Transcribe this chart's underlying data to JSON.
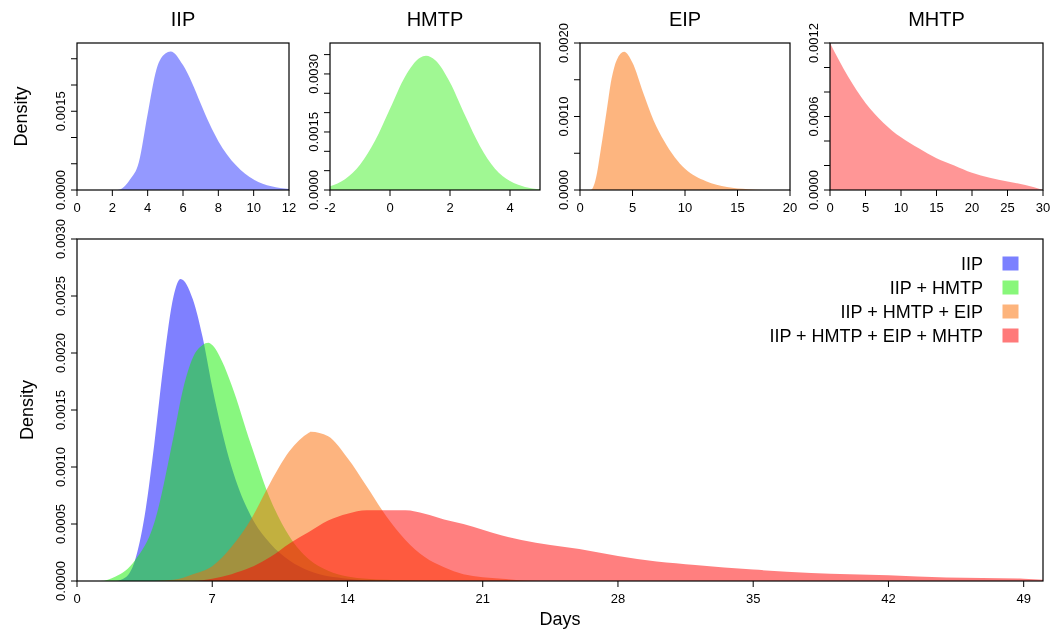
{
  "chart_data": [
    {
      "type": "area",
      "title": "IIP",
      "ylabel": "Density",
      "color": "#9499ff",
      "xlim": [
        0,
        12
      ],
      "xticks": [
        0,
        2,
        4,
        6,
        8,
        10,
        12
      ],
      "ylim": [
        0,
        0.0028
      ],
      "yticks": [
        {
          "value": 0,
          "label": "0.0000"
        },
        {
          "value": 0.0005,
          "label": null
        },
        {
          "value": 0.001,
          "label": null
        },
        {
          "value": 0.0015,
          "label": "0.0015"
        },
        {
          "value": 0.002,
          "label": null
        },
        {
          "value": 0.0025,
          "label": null
        }
      ],
      "x": [
        0,
        2.3,
        3,
        3.5,
        4,
        4.5,
        5,
        5.3,
        6,
        6.5,
        7,
        7.5,
        8,
        9,
        10,
        11,
        12
      ],
      "values": [
        0,
        0,
        0.0002,
        0.00053,
        0.00145,
        0.0023,
        0.0026,
        0.00264,
        0.00238,
        0.00205,
        0.00165,
        0.00126,
        0.00093,
        0.00047,
        0.0002,
        7e-05,
        2e-05
      ]
    },
    {
      "type": "area",
      "title": "HMTP",
      "color": "#a0f893",
      "xlim": [
        -2,
        5
      ],
      "xticks": [
        -2,
        0,
        2,
        4
      ],
      "ylim": [
        0,
        0.0038
      ],
      "yticks": [
        {
          "value": 0,
          "label": "0.0000"
        },
        {
          "value": 0.0005,
          "label": null
        },
        {
          "value": 0.001,
          "label": null
        },
        {
          "value": 0.0015,
          "label": "0.0015"
        },
        {
          "value": 0.002,
          "label": null
        },
        {
          "value": 0.0025,
          "label": null
        },
        {
          "value": 0.003,
          "label": "0.0030"
        },
        {
          "value": 0.0035,
          "label": null
        }
      ],
      "x": [
        -2,
        -1.5,
        -1,
        -0.5,
        0,
        0.5,
        1,
        1.2,
        1.5,
        2,
        2.5,
        3,
        3.5,
        4,
        4.5,
        5
      ],
      "values": [
        0.0001,
        0.00028,
        0.00065,
        0.00127,
        0.0021,
        0.00293,
        0.00342,
        0.00347,
        0.00336,
        0.00278,
        0.00193,
        0.00113,
        0.00055,
        0.00023,
        8e-05,
        2e-05
      ]
    },
    {
      "type": "area",
      "title": "EIP",
      "color": "#fdb57d",
      "xlim": [
        0,
        20
      ],
      "xticks": [
        0,
        5,
        10,
        15,
        20
      ],
      "ylim": [
        0,
        0.002
      ],
      "yticks": [
        {
          "value": 0,
          "label": "0.0000"
        },
        {
          "value": 0.0005,
          "label": null
        },
        {
          "value": 0.001,
          "label": "0.0010"
        },
        {
          "value": 0.0015,
          "label": null
        },
        {
          "value": 0.002,
          "label": "0.0020"
        }
      ],
      "x": [
        0,
        1,
        1.5,
        2,
        2.5,
        3,
        3.5,
        4.2,
        5,
        6,
        7,
        8,
        9,
        10,
        12,
        14,
        16,
        18,
        20
      ],
      "values": [
        0,
        0,
        0.00015,
        0.00057,
        0.00104,
        0.00151,
        0.00177,
        0.00188,
        0.00173,
        0.00133,
        0.00095,
        0.00067,
        0.00045,
        0.00029,
        0.00012,
        4e-05,
        1e-05,
        0,
        0
      ]
    },
    {
      "type": "area",
      "title": "MHTP",
      "color": "#ff9696",
      "xlim": [
        0,
        30
      ],
      "xticks": [
        0,
        5,
        10,
        15,
        20,
        25,
        30
      ],
      "ylim": [
        0,
        0.0012
      ],
      "yticks": [
        {
          "value": 0,
          "label": "0.0000"
        },
        {
          "value": 0.0002,
          "label": null
        },
        {
          "value": 0.0004,
          "label": null
        },
        {
          "value": 0.0006,
          "label": "0.0006"
        },
        {
          "value": 0.0008,
          "label": null
        },
        {
          "value": 0.001,
          "label": null
        },
        {
          "value": 0.0012,
          "label": "0.0012"
        }
      ],
      "x": [
        0,
        2.5,
        5,
        7.5,
        10,
        12.5,
        15,
        17.5,
        20,
        22.5,
        25,
        27.5,
        30
      ],
      "values": [
        0.0012,
        0.00093,
        0.00071,
        0.00055,
        0.00043,
        0.00034,
        0.00026,
        0.0002,
        0.00014,
        0.0001,
        7e-05,
        4e-05,
        0
      ]
    },
    {
      "type": "area",
      "xlabel": "Days",
      "ylabel": "Density",
      "legend": "top right",
      "xlim": [
        0,
        50
      ],
      "xticks": [
        0,
        7,
        14,
        21,
        28,
        35,
        42,
        49
      ],
      "ylim": [
        0,
        0.003
      ],
      "yticks": [
        {
          "value": 0,
          "label": "0.0000"
        },
        {
          "value": 0.0005,
          "label": "0.0005"
        },
        {
          "value": 0.001,
          "label": "0.0010"
        },
        {
          "value": 0.0015,
          "label": "0.0015"
        },
        {
          "value": 0.002,
          "label": "0.0020"
        },
        {
          "value": 0.0025,
          "label": "0.0025"
        },
        {
          "value": 0.003,
          "label": "0.0030"
        }
      ],
      "series": [
        {
          "name": "IIP",
          "color": "#7b80ff",
          "x": [
            0,
            2,
            2.5,
            3,
            3.5,
            4,
            4.5,
            5,
            5.36,
            6,
            6.5,
            7,
            8,
            9,
            10,
            11,
            12,
            14,
            16,
            50
          ],
          "values": [
            0,
            0,
            3e-05,
            0.00018,
            0.00057,
            0.0012,
            0.00193,
            0.0025,
            0.00265,
            0.00247,
            0.00214,
            0.0017,
            0.001,
            0.00057,
            0.00033,
            0.00018,
            9e-05,
            2e-05,
            0,
            0
          ]
        },
        {
          "name": "IIP + HMTP",
          "color": "#88f77a",
          "x": [
            0,
            1.2,
            2,
            2.5,
            3,
            4,
            5,
            5.5,
            6,
            6.5,
            6.8,
            7,
            7.5,
            8,
            9,
            10,
            11,
            12,
            13,
            14,
            16,
            18,
            50
          ],
          "values": [
            0,
            0,
            4e-05,
            9e-05,
            0.00018,
            0.00051,
            0.00127,
            0.00169,
            0.00196,
            0.00207,
            0.00209,
            0.00207,
            0.00193,
            0.00172,
            0.0012,
            0.00072,
            0.00039,
            0.00019,
            9e-05,
            4e-05,
            1e-05,
            0,
            0
          ]
        },
        {
          "name": "IIP + HMTP + EIP",
          "color": "#fdb47c",
          "x": [
            0,
            4,
            5,
            6,
            7,
            8,
            9,
            10,
            11,
            12,
            12.1,
            13,
            14,
            15,
            16,
            17,
            18,
            19,
            20,
            22,
            24,
            50
          ],
          "values": [
            0,
            0,
            1e-05,
            6e-05,
            0.00013,
            0.0003,
            0.00054,
            0.00086,
            0.00114,
            0.0013,
            0.00131,
            0.00127,
            0.00108,
            0.00083,
            0.00057,
            0.00036,
            0.00021,
            0.00012,
            6e-05,
            2e-05,
            0,
            0
          ]
        },
        {
          "name": "IIP + HMTP + EIP + MHTP",
          "color": "#ff7a7a",
          "x": [
            0,
            6,
            7,
            8,
            9,
            10,
            11,
            12,
            13,
            14,
            15,
            16,
            17,
            18,
            19,
            20,
            21,
            22,
            23,
            26,
            28,
            30,
            32,
            35,
            38,
            42,
            45,
            49,
            50
          ],
          "values": [
            0,
            0,
            2e-05,
            6e-05,
            0.00012,
            0.00021,
            0.00033,
            0.00043,
            0.00053,
            0.00059,
            0.00062,
            0.00062,
            0.00062,
            0.00059,
            0.00054,
            0.0005,
            0.00045,
            0.0004,
            0.00036,
            0.00028,
            0.00022,
            0.00017,
            0.00014,
            0.0001,
            7e-05,
            5e-05,
            3e-05,
            2e-05,
            1e-05
          ]
        }
      ]
    }
  ]
}
